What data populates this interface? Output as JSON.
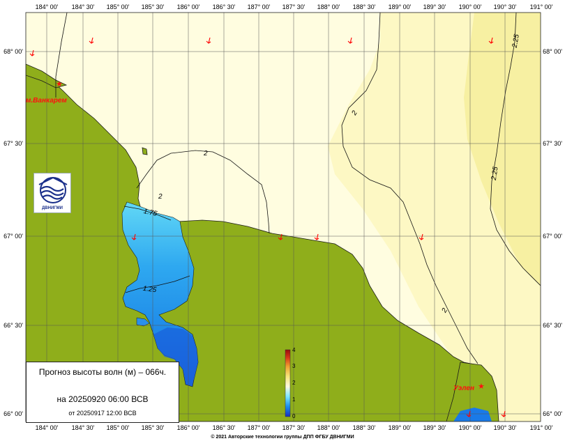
{
  "map": {
    "lon_labels": [
      "184° 00'",
      "184° 30'",
      "185° 00'",
      "185° 30'",
      "186° 00'",
      "186° 30'",
      "187° 00'",
      "187° 30'",
      "188° 00'",
      "188° 30'",
      "189° 00'",
      "189° 30'",
      "190° 00'",
      "190° 30'",
      "191° 00'"
    ],
    "lat_labels": [
      "68° 00'",
      "67° 30'",
      "67° 00'",
      "66° 30'",
      "66° 00'"
    ],
    "contour_labels": [
      "2.25",
      "2.25",
      "2",
      "2",
      "2",
      "2",
      "1.75",
      "1.25"
    ],
    "places": [
      "м.Ванкарем",
      "Уэлен"
    ],
    "colors": {
      "land": "#8fae1b",
      "sea_pale": "#fffde0",
      "sea_light": "#fdf8c4",
      "sea_yellow": "#f7f0a2",
      "water_light_blue": "#5ad4f6",
      "water_blue": "#23a0ee",
      "water_deep_blue": "#1a6fe2",
      "arrow": "#ff0000",
      "place_label": "#ff1010"
    }
  },
  "colorbar": {
    "labels": [
      "4",
      "3",
      "2",
      "1",
      "0"
    ]
  },
  "info": {
    "title": "Прогноз высоты волн (м) – 066ч.",
    "valid": "на 20250920 06:00 ВСВ",
    "issued": "от 20250917 12:00 ВСВ"
  },
  "logo": {
    "text": "ДВНИГМИ",
    "icon": "wave-globe-logo"
  },
  "footer": {
    "copyright": "© 2021 Авторские технологии группы ДПП ФГБУ ДВНИГМИ"
  }
}
